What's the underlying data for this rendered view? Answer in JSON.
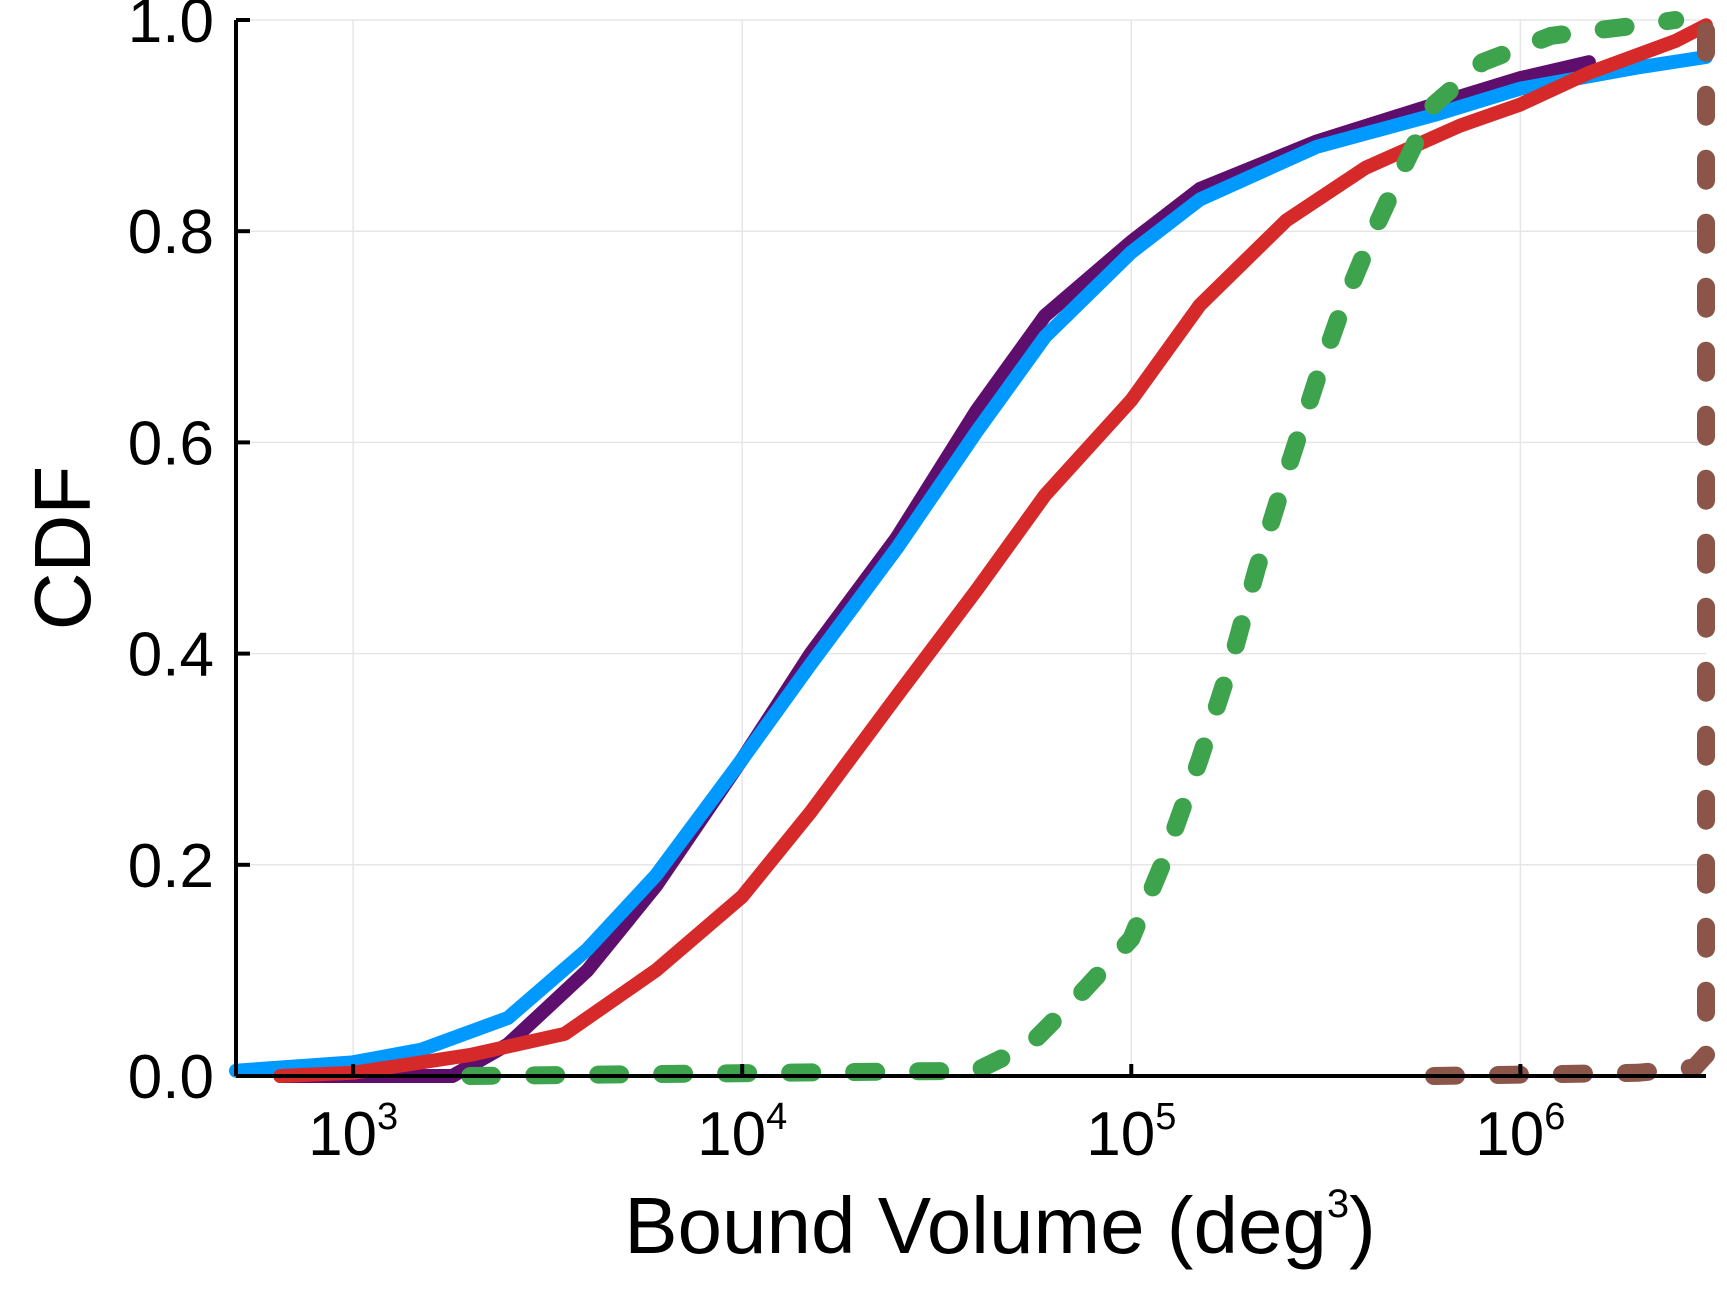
{
  "chart_data": {
    "type": "line",
    "xlabel": "Bound Volume (deg",
    "xlabel_sup": "3",
    "xlabel_close": ")",
    "ylabel": "CDF",
    "x_scale": "log10",
    "xlim": [
      500,
      3000000
    ],
    "ylim": [
      0,
      1.0
    ],
    "grid": true,
    "y_ticks": [
      {
        "value": 0.0,
        "label": "0.0"
      },
      {
        "value": 0.2,
        "label": "0.2"
      },
      {
        "value": 0.4,
        "label": "0.4"
      },
      {
        "value": 0.6,
        "label": "0.6"
      },
      {
        "value": 0.8,
        "label": "0.8"
      },
      {
        "value": 1.0,
        "label": "1.0"
      }
    ],
    "x_ticks": [
      {
        "value": 1000,
        "base": "10",
        "exp": "3"
      },
      {
        "value": 10000,
        "base": "10",
        "exp": "4"
      },
      {
        "value": 100000,
        "base": "10",
        "exp": "5"
      },
      {
        "value": 1000000,
        "base": "10",
        "exp": "6"
      }
    ],
    "series": [
      {
        "name": "purple",
        "color": "#5e0f6e",
        "style": "solid",
        "points": [
          [
            650,
            0
          ],
          [
            1800,
            0.0
          ],
          [
            2500,
            0.03
          ],
          [
            4000,
            0.1
          ],
          [
            6000,
            0.18
          ],
          [
            10000,
            0.3
          ],
          [
            15000,
            0.4
          ],
          [
            25000,
            0.51
          ],
          [
            40000,
            0.63
          ],
          [
            60000,
            0.72
          ],
          [
            100000,
            0.79
          ],
          [
            150000,
            0.84
          ],
          [
            300000,
            0.885
          ],
          [
            600000,
            0.92
          ],
          [
            1000000,
            0.945
          ],
          [
            1500000,
            0.96
          ]
        ]
      },
      {
        "name": "blue",
        "color": "#0099ff",
        "style": "solid",
        "points": [
          [
            500,
            0.005
          ],
          [
            1000,
            0.013
          ],
          [
            1500,
            0.025
          ],
          [
            2500,
            0.055
          ],
          [
            4000,
            0.12
          ],
          [
            6000,
            0.19
          ],
          [
            10000,
            0.3
          ],
          [
            15000,
            0.39
          ],
          [
            25000,
            0.5
          ],
          [
            40000,
            0.61
          ],
          [
            60000,
            0.7
          ],
          [
            100000,
            0.78
          ],
          [
            150000,
            0.83
          ],
          [
            300000,
            0.88
          ],
          [
            600000,
            0.91
          ],
          [
            1000000,
            0.935
          ],
          [
            2000000,
            0.955
          ],
          [
            3000000,
            0.965
          ]
        ]
      },
      {
        "name": "red",
        "color": "#d62a2a",
        "style": "solid",
        "points": [
          [
            650,
            0.0
          ],
          [
            1000,
            0.003
          ],
          [
            2000,
            0.02
          ],
          [
            3500,
            0.04
          ],
          [
            6000,
            0.1
          ],
          [
            10000,
            0.17
          ],
          [
            15000,
            0.25
          ],
          [
            25000,
            0.36
          ],
          [
            40000,
            0.46
          ],
          [
            60000,
            0.55
          ],
          [
            100000,
            0.64
          ],
          [
            150000,
            0.73
          ],
          [
            250000,
            0.81
          ],
          [
            400000,
            0.86
          ],
          [
            700000,
            0.9
          ],
          [
            1000000,
            0.92
          ],
          [
            1500000,
            0.95
          ],
          [
            2500000,
            0.98
          ],
          [
            3000000,
            0.995
          ]
        ]
      },
      {
        "name": "green",
        "color": "#3da34d",
        "style": "dotted",
        "points": [
          [
            2000,
            0.0
          ],
          [
            40000,
            0.005
          ],
          [
            55000,
            0.03
          ],
          [
            75000,
            0.08
          ],
          [
            100000,
            0.13
          ],
          [
            120000,
            0.2
          ],
          [
            150000,
            0.3
          ],
          [
            180000,
            0.39
          ],
          [
            210000,
            0.48
          ],
          [
            250000,
            0.57
          ],
          [
            300000,
            0.66
          ],
          [
            350000,
            0.73
          ],
          [
            420000,
            0.8
          ],
          [
            500000,
            0.86
          ],
          [
            600000,
            0.92
          ],
          [
            800000,
            0.96
          ],
          [
            1200000,
            0.985
          ],
          [
            2000000,
            0.995
          ],
          [
            2500000,
            1.0
          ]
        ]
      },
      {
        "name": "brown",
        "color": "#8b5549",
        "style": "dotted",
        "points": [
          [
            600000,
            0.0
          ],
          [
            2000000,
            0.003
          ],
          [
            2800000,
            0.008
          ],
          [
            3000000,
            0.02
          ],
          [
            3000000,
            0.5
          ],
          [
            3000000,
            1.0
          ]
        ]
      }
    ]
  }
}
